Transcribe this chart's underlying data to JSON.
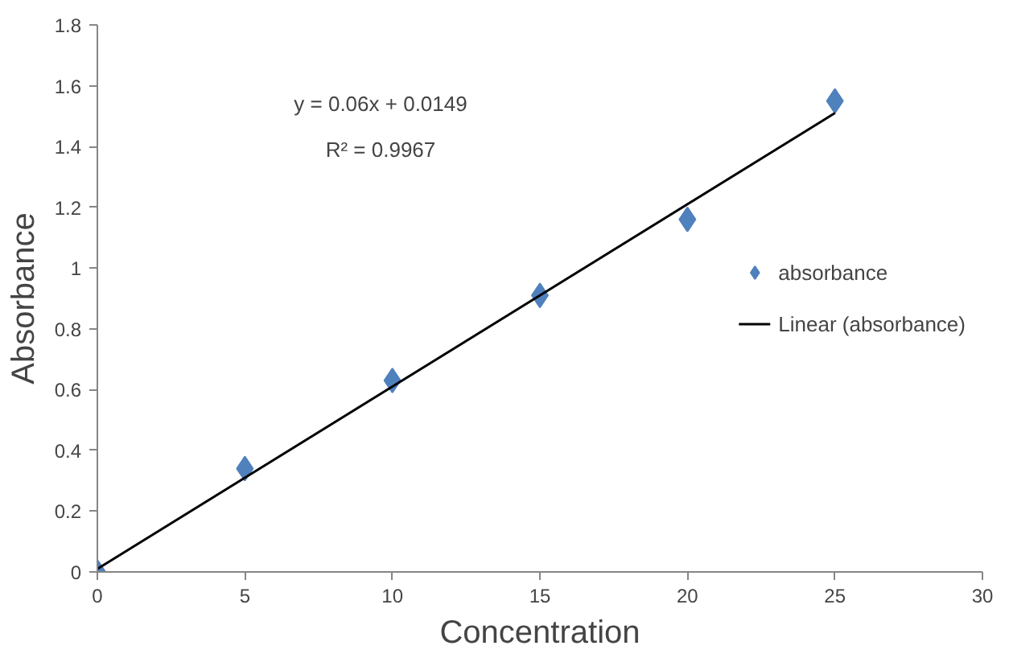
{
  "chart_data": {
    "type": "scatter",
    "xlabel": "Concentration",
    "ylabel": "Absorbance",
    "x": [
      0,
      5,
      10,
      15,
      20,
      25
    ],
    "series": [
      {
        "name": "absorbance",
        "color": "#4f81bd",
        "marker": "diamond",
        "values": [
          0,
          0.34,
          0.63,
          0.91,
          1.16,
          1.55
        ]
      },
      {
        "name": "Linear (absorbance)",
        "type": "line",
        "marker": "none",
        "color": "#000000",
        "x": [
          0,
          25
        ],
        "values": [
          0.01,
          1.51
        ]
      }
    ],
    "annotations": [
      "y = 0.06x + 0.0149",
      "R² = 0.9967"
    ],
    "xlim": [
      0,
      30
    ],
    "xticks": [
      0,
      5,
      10,
      15,
      20,
      25,
      30
    ],
    "ylim": [
      0,
      1.8
    ],
    "yticks": [
      0,
      0.2,
      0.4,
      0.6,
      0.8,
      1,
      1.2,
      1.4,
      1.6,
      1.8
    ],
    "grid": false,
    "legend": "right"
  }
}
